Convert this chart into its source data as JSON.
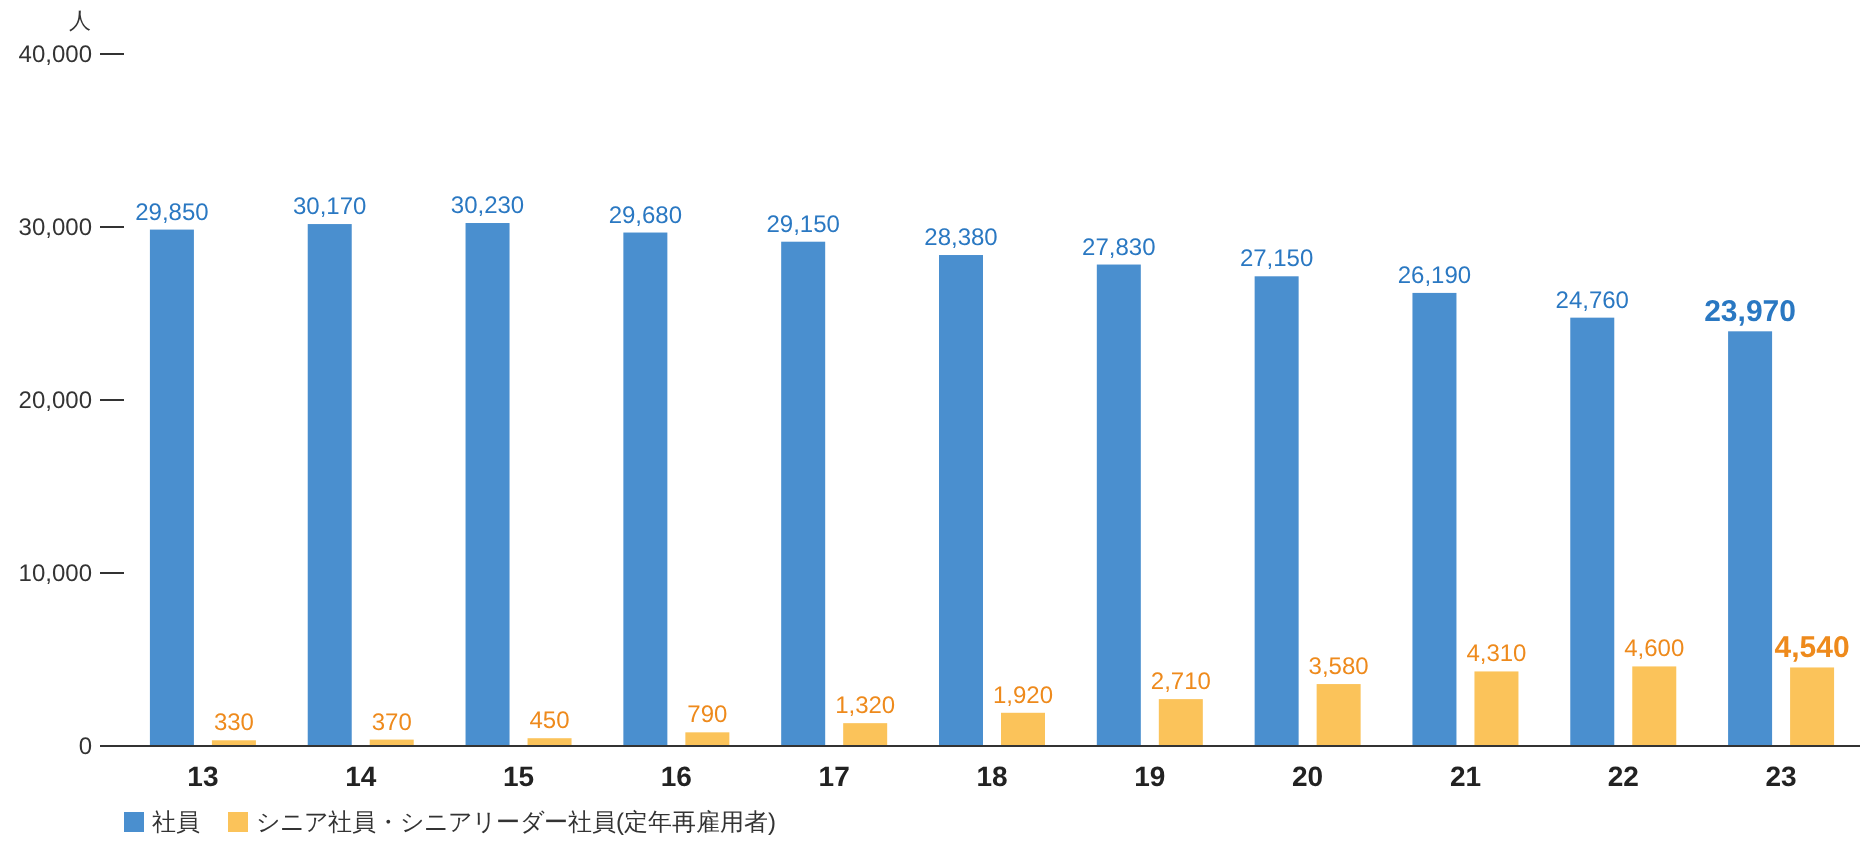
{
  "chart_data": {
    "type": "bar",
    "ylabel": "人",
    "categories": [
      "13",
      "14",
      "15",
      "16",
      "17",
      "18",
      "19",
      "20",
      "21",
      "22",
      "23"
    ],
    "series": [
      {
        "name": "社員",
        "color": "#4a8fcf",
        "values": [
          29850,
          30170,
          30230,
          29680,
          29150,
          28380,
          27830,
          27150,
          26190,
          24760,
          23970
        ],
        "value_labels": [
          "29,850",
          "30,170",
          "30,230",
          "29,680",
          "29,150",
          "28,380",
          "27,830",
          "27,150",
          "26,190",
          "24,760",
          "23,970"
        ]
      },
      {
        "name": "シニア社員・シニアリーダー社員(定年再雇用者)",
        "color": "#fbc35a",
        "values": [
          330,
          370,
          450,
          790,
          1320,
          1920,
          2710,
          3580,
          4310,
          4600,
          4540
        ],
        "value_labels": [
          "330",
          "370",
          "450",
          "790",
          "1,320",
          "1,920",
          "2,710",
          "3,580",
          "4,310",
          "4,600",
          "4,540"
        ]
      }
    ],
    "ylim": [
      0,
      40000
    ],
    "yticks": [
      {
        "value": 0,
        "label": "0"
      },
      {
        "value": 10000,
        "label": "10,000"
      },
      {
        "value": 20000,
        "label": "20,000"
      },
      {
        "value": 30000,
        "label": "30,000"
      },
      {
        "value": 40000,
        "label": "40,000"
      }
    ],
    "grid": false,
    "legend": "bottom left"
  }
}
